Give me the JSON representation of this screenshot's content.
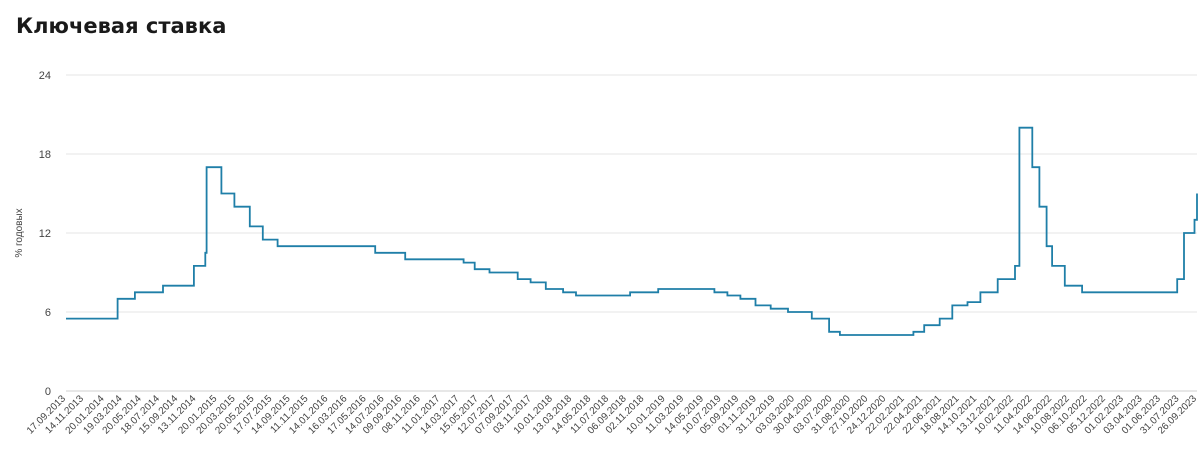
{
  "chart_data": {
    "type": "line",
    "title": "Ключевая ставка",
    "xlabel": "",
    "ylabel": "% годовых",
    "ylim": [
      0,
      24
    ],
    "yticks": [
      0,
      6,
      12,
      18,
      24
    ],
    "grid": true,
    "line_color": "#1f7fa8",
    "x_tick_labels": [
      "17.09.2013",
      "14.11.2013",
      "20.01.2014",
      "19.03.2014",
      "20.05.2014",
      "18.07.2014",
      "15.09.2014",
      "13.11.2014",
      "20.01.2015",
      "20.03.2015",
      "20.05.2015",
      "17.07.2015",
      "14.09.2015",
      "11.11.2015",
      "14.01.2016",
      "16.03.2016",
      "17.05.2016",
      "14.07.2016",
      "09.09.2016",
      "08.11.2016",
      "11.01.2017",
      "14.03.2017",
      "15.05.2017",
      "12.07.2017",
      "07.09.2017",
      "03.11.2017",
      "10.01.2018",
      "13.03.2018",
      "14.05.2018",
      "11.07.2018",
      "06.09.2018",
      "02.11.2018",
      "10.01.2019",
      "11.03.2019",
      "14.05.2019",
      "10.07.2019",
      "05.09.2019",
      "01.11.2019",
      "31.12.2019",
      "03.03.2020",
      "30.04.2020",
      "03.07.2020",
      "31.08.2020",
      "27.10.2020",
      "24.12.2020",
      "22.02.2021",
      "22.04.2021",
      "22.06.2021",
      "18.08.2021",
      "14.10.2021",
      "13.12.2021",
      "10.02.2022",
      "11.04.2022",
      "14.06.2022",
      "10.08.2022",
      "06.10.2022",
      "05.12.2022",
      "01.02.2023",
      "03.04.2023",
      "01.06.2023",
      "31.07.2023",
      "26.09.2023"
    ],
    "series": [
      {
        "x": [
          "2013-09-13",
          "2014-03-03",
          "2014-04-28",
          "2014-07-28",
          "2014-11-05",
          "2014-12-12",
          "2014-12-16",
          "2015-02-02",
          "2015-03-16",
          "2015-05-05",
          "2015-06-16",
          "2015-08-03",
          "2016-06-14",
          "2016-09-19",
          "2017-03-27",
          "2017-05-02",
          "2017-06-19",
          "2017-09-18",
          "2017-10-30",
          "2017-12-18",
          "2018-02-12",
          "2018-03-26",
          "2018-09-17",
          "2018-12-17",
          "2019-06-17",
          "2019-07-29",
          "2019-09-09",
          "2019-10-28",
          "2019-12-16",
          "2020-02-10",
          "2020-04-27",
          "2020-06-22",
          "2020-07-27",
          "2021-03-22",
          "2021-04-26",
          "2021-06-15",
          "2021-07-26",
          "2021-09-13",
          "2021-10-25",
          "2021-12-20",
          "2022-02-14",
          "2022-02-28",
          "2022-04-11",
          "2022-05-04",
          "2022-05-27",
          "2022-06-14",
          "2022-07-25",
          "2022-09-19",
          "2023-07-24",
          "2023-08-15",
          "2023-09-18",
          "2023-10-30",
          "2023-11-30"
        ],
        "values": [
          5.5,
          7.0,
          7.5,
          8.0,
          9.5,
          10.5,
          17.0,
          15.0,
          14.0,
          12.5,
          11.5,
          11.0,
          10.5,
          10.0,
          9.75,
          9.25,
          9.0,
          8.5,
          8.25,
          7.75,
          7.5,
          7.25,
          7.5,
          7.75,
          7.5,
          7.25,
          7.0,
          6.5,
          6.25,
          6.0,
          5.5,
          4.5,
          4.25,
          4.5,
          5.0,
          5.5,
          6.5,
          6.75,
          7.5,
          8.5,
          9.5,
          20.0,
          17.0,
          14.0,
          11.0,
          9.5,
          8.0,
          7.5,
          8.5,
          12.0,
          13.0,
          15.0,
          15.0
        ]
      }
    ]
  }
}
